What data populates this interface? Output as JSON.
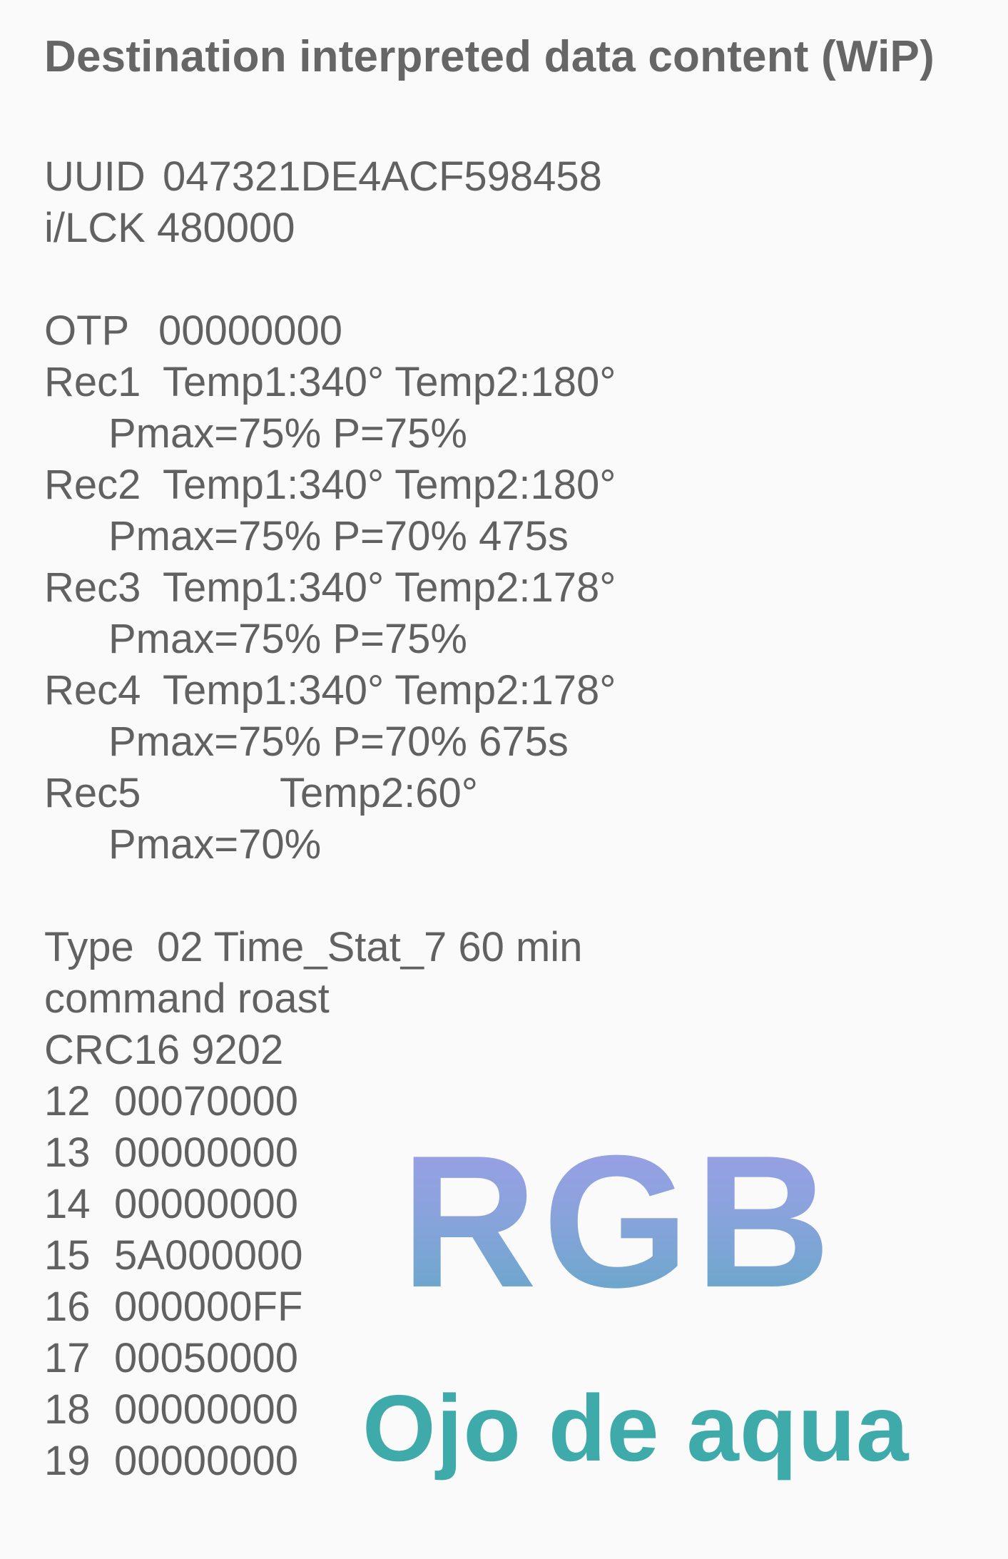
{
  "title": "Destination interpreted data content (WiP)",
  "uuid": {
    "label": "UUID",
    "value": "047321DE4ACF598458"
  },
  "lck": {
    "label": "i/LCK",
    "value": "480000"
  },
  "otp": {
    "label": "OTP",
    "value": "00000000"
  },
  "records": [
    {
      "label": "Rec1",
      "temp1": "Temp1:340°",
      "temp2": "Temp2:180°",
      "detail": "Pmax=75% P=75%"
    },
    {
      "label": "Rec2",
      "temp1": "Temp1:340°",
      "temp2": "Temp2:180°",
      "detail": "Pmax=75% P=70% 475s"
    },
    {
      "label": "Rec3",
      "temp1": "Temp1:340°",
      "temp2": "Temp2:178°",
      "detail": "Pmax=75% P=75%"
    },
    {
      "label": "Rec4",
      "temp1": "Temp1:340°",
      "temp2": "Temp2:178°",
      "detail": "Pmax=75% P=70% 675s"
    },
    {
      "label": "Rec5",
      "temp2": "Temp2:60°",
      "detail": "Pmax=70%"
    }
  ],
  "type": {
    "label": "Type",
    "value": "02 Time_Stat_7 60 min"
  },
  "command": "command roast",
  "crc": "CRC16 9202",
  "rows": [
    {
      "index": "12",
      "value": "00070000"
    },
    {
      "index": "13",
      "value": "00000000"
    },
    {
      "index": "14",
      "value": "00000000"
    },
    {
      "index": "15",
      "value": "5A000000"
    },
    {
      "index": "16",
      "value": "000000FF"
    },
    {
      "index": "17",
      "value": "00050000"
    },
    {
      "index": "18",
      "value": "00000000"
    },
    {
      "index": "19",
      "value": "00000000"
    }
  ],
  "watermark": {
    "main": "RGB",
    "sub": "Ojo de aqua",
    "colors": {
      "main_top": "#9d9ee8",
      "main_bottom": "#64a8c8",
      "sub": "#3eaaaa"
    }
  }
}
